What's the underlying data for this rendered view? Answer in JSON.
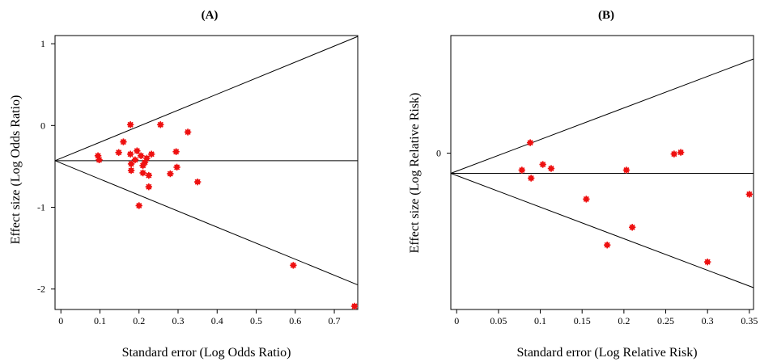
{
  "colors": {
    "marker": "#ee1111",
    "line": "#000000",
    "background": "#ffffff"
  },
  "chart_data": [
    {
      "type": "scatter",
      "title": "(A)",
      "xlabel": "Standard error (Log Odds Ratio)",
      "ylabel": "Effect size (Log Odds Ratio)",
      "xlim": [
        -0.015,
        0.76
      ],
      "ylim": [
        -2.25,
        1.1
      ],
      "xticks": [
        0,
        0.1,
        0.2,
        0.3,
        0.4,
        0.5,
        0.6,
        0.7
      ],
      "xtick_labels": [
        "0",
        "0.1",
        "0.2",
        "0.3",
        "0.4",
        "0.5",
        "0.6",
        "0.7"
      ],
      "yticks": [
        1,
        0,
        -1,
        -2
      ],
      "ytick_labels": [
        "1",
        "0",
        "-1",
        "-2"
      ],
      "pooled_effect": -0.43,
      "funnel_z": 1.96,
      "points": [
        {
          "x": 0.095,
          "y": -0.37
        },
        {
          "x": 0.098,
          "y": -0.42
        },
        {
          "x": 0.148,
          "y": -0.33
        },
        {
          "x": 0.16,
          "y": -0.2
        },
        {
          "x": 0.178,
          "y": 0.01
        },
        {
          "x": 0.178,
          "y": -0.35
        },
        {
          "x": 0.18,
          "y": -0.47
        },
        {
          "x": 0.18,
          "y": -0.55
        },
        {
          "x": 0.19,
          "y": -0.42
        },
        {
          "x": 0.195,
          "y": -0.31
        },
        {
          "x": 0.2,
          "y": -0.98
        },
        {
          "x": 0.205,
          "y": -0.37
        },
        {
          "x": 0.21,
          "y": -0.49
        },
        {
          "x": 0.21,
          "y": -0.58
        },
        {
          "x": 0.215,
          "y": -0.45
        },
        {
          "x": 0.22,
          "y": -0.4
        },
        {
          "x": 0.225,
          "y": -0.61
        },
        {
          "x": 0.225,
          "y": -0.75
        },
        {
          "x": 0.232,
          "y": -0.35
        },
        {
          "x": 0.255,
          "y": 0.01
        },
        {
          "x": 0.28,
          "y": -0.59
        },
        {
          "x": 0.295,
          "y": -0.32
        },
        {
          "x": 0.297,
          "y": -0.51
        },
        {
          "x": 0.325,
          "y": -0.08
        },
        {
          "x": 0.35,
          "y": -0.69
        },
        {
          "x": 0.595,
          "y": -1.71
        },
        {
          "x": 0.752,
          "y": -2.21
        }
      ]
    },
    {
      "type": "scatter",
      "title": "(B)",
      "xlabel": "Standard error (Log Relative Risk)",
      "ylabel": "Effect size (Log Relative Risk)",
      "xlim": [
        -0.007,
        0.355
      ],
      "ylim": [
        -0.97,
        0.73
      ],
      "xticks": [
        0,
        0.05,
        0.1,
        0.15,
        0.2,
        0.25,
        0.3,
        0.35
      ],
      "xtick_labels": [
        "0",
        "0.05",
        "0.1",
        "0.15",
        "0.2",
        "0.25",
        "0.3",
        "0.35"
      ],
      "yticks": [
        0
      ],
      "ytick_labels": [
        "0"
      ],
      "pooled_effect": -0.125,
      "funnel_z": 1.96,
      "points": [
        {
          "x": 0.078,
          "y": -0.105
        },
        {
          "x": 0.088,
          "y": 0.065
        },
        {
          "x": 0.089,
          "y": -0.155
        },
        {
          "x": 0.103,
          "y": -0.07
        },
        {
          "x": 0.113,
          "y": -0.095
        },
        {
          "x": 0.155,
          "y": -0.285
        },
        {
          "x": 0.18,
          "y": -0.57
        },
        {
          "x": 0.203,
          "y": -0.105
        },
        {
          "x": 0.21,
          "y": -0.46
        },
        {
          "x": 0.26,
          "y": -0.005
        },
        {
          "x": 0.268,
          "y": 0.005
        },
        {
          "x": 0.3,
          "y": -0.675
        },
        {
          "x": 0.35,
          "y": -0.255
        }
      ]
    }
  ]
}
